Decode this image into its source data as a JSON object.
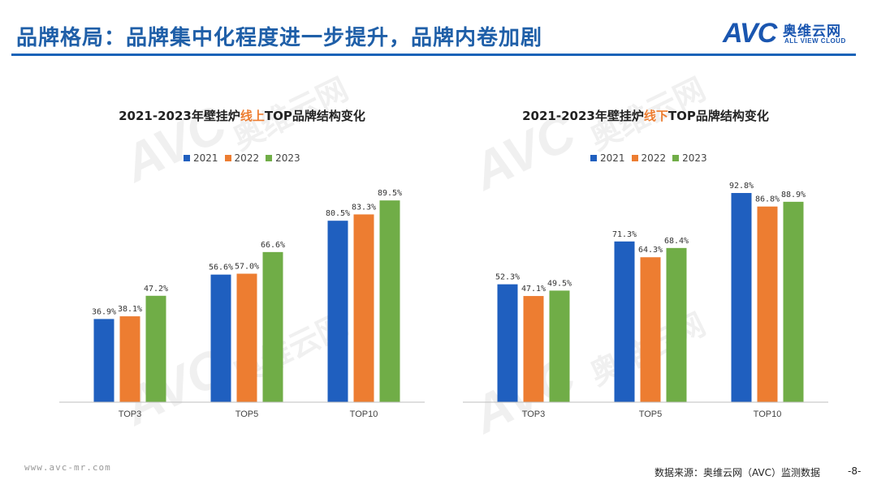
{
  "header": {
    "title": "品牌格局：品牌集中化程度进一步提升，品牌内卷加剧",
    "logo_mark": "AVC",
    "logo_cn": "奥维云网",
    "logo_en": "ALL VIEW CLOUD"
  },
  "colors": {
    "series_2021": "#1f5fbf",
    "series_2022": "#ed7d31",
    "series_2023": "#70ad47",
    "title_blue": "#1f5fa8",
    "highlight": "#ed7d31"
  },
  "chart_data": [
    {
      "type": "bar",
      "title_prefix": "2021-2023年壁挂炉",
      "title_highlight": "线上",
      "title_suffix": "TOP品牌结构变化",
      "categories": [
        "TOP3",
        "TOP5",
        "TOP10"
      ],
      "series": [
        {
          "name": "2021",
          "values": [
            36.9,
            56.6,
            80.5
          ],
          "labels": [
            "36.9%",
            "56.6%",
            "80.5%"
          ]
        },
        {
          "name": "2022",
          "values": [
            38.1,
            57.0,
            83.3
          ],
          "labels": [
            "38.1%",
            "57.0%",
            "83.3%"
          ]
        },
        {
          "name": "2023",
          "values": [
            47.2,
            66.6,
            89.5
          ],
          "labels": [
            "47.2%",
            "66.6%",
            "89.5%"
          ]
        }
      ],
      "ylim": [
        0,
        100
      ],
      "grid": false,
      "legend": "top-center"
    },
    {
      "type": "bar",
      "title_prefix": "2021-2023年壁挂炉",
      "title_highlight": "线下",
      "title_suffix": "TOP品牌结构变化",
      "categories": [
        "TOP3",
        "TOP5",
        "TOP10"
      ],
      "series": [
        {
          "name": "2021",
          "values": [
            52.3,
            71.3,
            92.8
          ],
          "labels": [
            "52.3%",
            "71.3%",
            "92.8%"
          ]
        },
        {
          "name": "2022",
          "values": [
            47.1,
            64.3,
            86.8
          ],
          "labels": [
            "47.1%",
            "64.3%",
            "86.8%"
          ]
        },
        {
          "name": "2023",
          "values": [
            49.5,
            68.4,
            88.9
          ],
          "labels": [
            "49.5%",
            "68.4%",
            "88.9%"
          ]
        }
      ],
      "ylim": [
        0,
        100
      ],
      "grid": false,
      "legend": "top-center"
    }
  ],
  "footer": {
    "url": "www.avc-mr.com",
    "source": "数据来源：奥维云网（AVC）监测数据",
    "page": "-8-"
  }
}
